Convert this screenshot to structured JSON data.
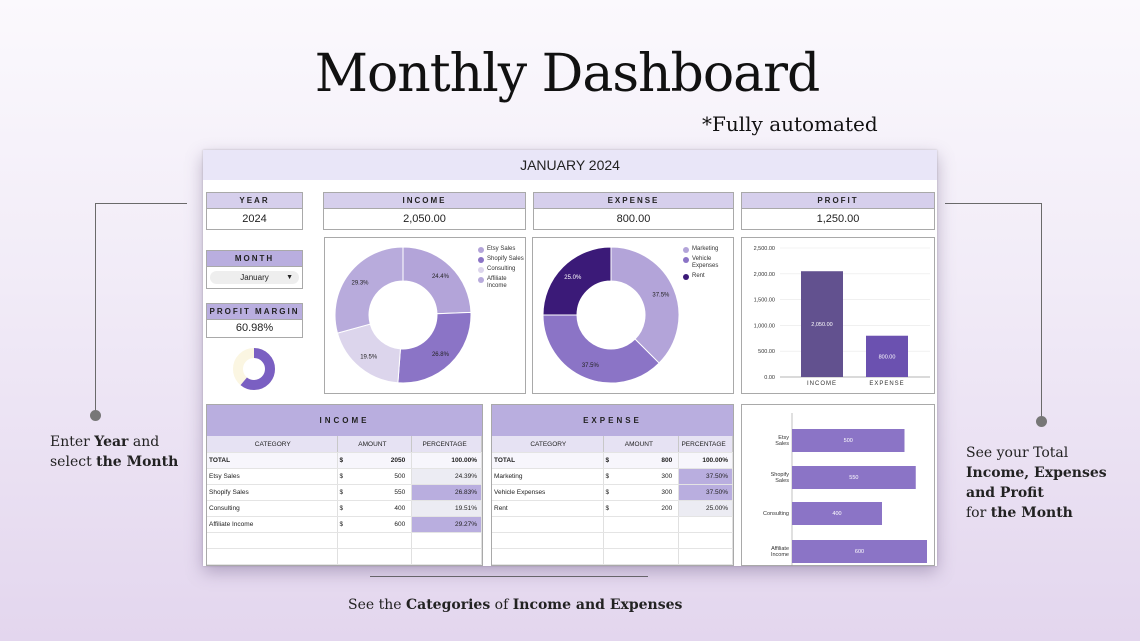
{
  "title": "Monthly Dashboard",
  "subtitle": "*Fully automated",
  "callouts": {
    "left": {
      "t1": "Enter ",
      "b1": "Year",
      "t2": " and",
      "t3": "select ",
      "b2": "the Month"
    },
    "right": {
      "t1": "See your Total",
      "b1": "Income, Expenses",
      "b2": "and Profit",
      "t2": "for ",
      "b3": "the Month"
    },
    "bottom": {
      "t1": "See the ",
      "b1": "Categories",
      "t2": " of ",
      "b2": "Income and Expenses"
    }
  },
  "dashboard": {
    "header": "JANUARY 2024",
    "year": {
      "label": "YEAR",
      "value": "2024"
    },
    "month": {
      "label": "MONTH",
      "value": "January"
    },
    "profit_margin": {
      "label": "PROFIT MARGIN",
      "value": "60.98%",
      "fraction": 0.6098
    },
    "income": {
      "label": "INCOME",
      "value": "2,050.00"
    },
    "expense": {
      "label": "EXPENSE",
      "value": "800.00"
    },
    "profit": {
      "label": "PROFIT",
      "value": "1,250.00"
    },
    "income_table": {
      "title": "INCOME",
      "headers": [
        "CATEGORY",
        "AMOUNT",
        "PERCENTAGE"
      ],
      "total": {
        "category": "TOTAL",
        "currency": "$",
        "amount": "2050",
        "pct": "100.00%"
      },
      "rows": [
        {
          "category": "Etsy Sales",
          "currency": "$",
          "amount": "500",
          "pct": "24.39%"
        },
        {
          "category": "Shopify Sales",
          "currency": "$",
          "amount": "550",
          "pct": "26.83%"
        },
        {
          "category": "Consulting",
          "currency": "$",
          "amount": "400",
          "pct": "19.51%"
        },
        {
          "category": "Affiliate Income",
          "currency": "$",
          "amount": "600",
          "pct": "29.27%"
        }
      ]
    },
    "expense_table": {
      "title": "EXPENSE",
      "headers": [
        "CATEGORY",
        "AMOUNT",
        "PERCENTAGE"
      ],
      "total": {
        "category": "TOTAL",
        "currency": "$",
        "amount": "800",
        "pct": "100.00%"
      },
      "rows": [
        {
          "category": "Marketing",
          "currency": "$",
          "amount": "300",
          "pct": "37.50%"
        },
        {
          "category": "Vehicle Expenses",
          "currency": "$",
          "amount": "300",
          "pct": "37.50%"
        },
        {
          "category": "Rent",
          "currency": "$",
          "amount": "200",
          "pct": "25.00%"
        }
      ]
    }
  },
  "colors": {
    "accent": "#b9aedf",
    "dark_purple": "#3b1a78",
    "mid_purple": "#8b74c6",
    "light_purple": "#b3a4d9",
    "pale_purple": "#dcd5ec"
  },
  "chart_data": [
    {
      "type": "pie",
      "name": "income-donut",
      "labels": [
        "Etsy Sales",
        "Shopify Sales",
        "Consulting",
        "Affiliate Income"
      ],
      "values": [
        24.4,
        26.8,
        19.5,
        29.3
      ],
      "slice_labels": [
        "24.4%",
        "26.8%",
        "19.5%",
        "29.3%"
      ],
      "colors": [
        "#b3a4d9",
        "#8b74c6",
        "#dcd5ec",
        "#b8abdc"
      ],
      "legend": "right"
    },
    {
      "type": "pie",
      "name": "expense-donut",
      "labels": [
        "Marketing",
        "Vehicle Expenses",
        "Rent"
      ],
      "values": [
        37.5,
        37.5,
        25.0
      ],
      "slice_labels": [
        "37.5%",
        "37.5%",
        "25.0%"
      ],
      "colors": [
        "#b3a4d9",
        "#8b74c6",
        "#3b1a78"
      ],
      "legend": "right"
    },
    {
      "type": "bar",
      "name": "income-expense-bar",
      "categories": [
        "INCOME",
        "EXPENSE"
      ],
      "values": [
        2050,
        800
      ],
      "data_labels": [
        "2,050.00",
        "800.00"
      ],
      "ylim": [
        0,
        2500
      ],
      "yticks": [
        "0.00",
        "500.00",
        "1,000.00",
        "1,500.00",
        "2,000.00",
        "2,500.00"
      ],
      "colors": [
        "#62518f",
        "#6b51b0"
      ]
    },
    {
      "type": "bar",
      "orientation": "horizontal",
      "name": "income-categories-bar",
      "categories": [
        "Etsy Sales",
        "Shopify Sales",
        "Consulting",
        "Affiliate Income"
      ],
      "values": [
        500,
        550,
        400,
        600
      ],
      "data_labels": [
        "500",
        "550",
        "400",
        "600"
      ],
      "color": "#8b74c6"
    }
  ]
}
